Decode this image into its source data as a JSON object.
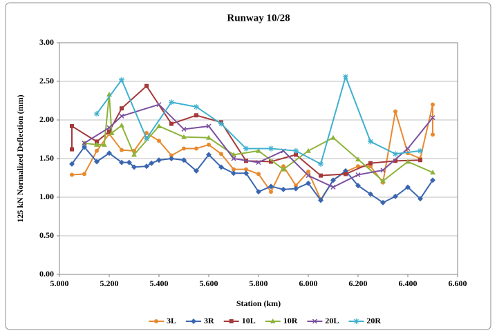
{
  "chart_data": {
    "type": "line",
    "title": "Runway 10/28",
    "x_label": "Station (km)",
    "y_label": "125 kN Normalized Deflection (mm)",
    "xlim": [
      5.0,
      6.6
    ],
    "xticks": [
      {
        "value": 5.0,
        "label": "5.000"
      },
      {
        "value": 5.2,
        "label": "5.200"
      },
      {
        "value": 5.4,
        "label": "5.400"
      },
      {
        "value": 5.6,
        "label": "5.600"
      },
      {
        "value": 5.8,
        "label": "5.800"
      },
      {
        "value": 6.0,
        "label": "6.000"
      },
      {
        "value": 6.2,
        "label": "6.200"
      },
      {
        "value": 6.4,
        "label": "6.400"
      },
      {
        "value": 6.6,
        "label": "6.600"
      }
    ],
    "ylim": [
      0,
      3
    ],
    "yticks": [
      {
        "value": 0,
        "label": "0.00"
      },
      {
        "value": 0.5,
        "label": "0.50"
      },
      {
        "value": 1,
        "label": "1.00"
      },
      {
        "value": 1.5,
        "label": "1.50"
      },
      {
        "value": 2,
        "label": "2.00"
      },
      {
        "value": 2.5,
        "label": "2.50"
      },
      {
        "value": 3,
        "label": "3.00"
      }
    ],
    "grid": true,
    "legend": "bottom",
    "series": [
      {
        "name": "3L",
        "color": "#e8892f",
        "marker": "circle",
        "x": [
          5.05,
          5.1,
          5.15,
          5.2,
          5.25,
          5.3,
          5.35,
          5.4,
          5.45,
          5.5,
          5.55,
          5.6,
          5.65,
          5.7,
          5.75,
          5.8,
          5.85,
          5.9,
          5.95,
          6.0,
          6.05,
          6.1,
          6.15,
          6.2,
          6.25,
          6.3,
          6.35,
          6.4,
          6.45,
          6.5,
          6.5
        ],
        "values": [
          1.29,
          1.3,
          1.6,
          1.82,
          1.61,
          1.6,
          1.83,
          1.73,
          1.54,
          1.63,
          1.63,
          1.68,
          1.56,
          1.36,
          1.36,
          1.3,
          1.07,
          1.4,
          1.15,
          1.33,
          0.97,
          1.22,
          1.33,
          1.4,
          1.4,
          1.19,
          2.11,
          1.57,
          1.5,
          2.2,
          1.81
        ]
      },
      {
        "name": "3R",
        "color": "#3a66b0",
        "marker": "diamond",
        "x": [
          5.05,
          5.1,
          5.15,
          5.2,
          5.25,
          5.28,
          5.3,
          5.35,
          5.37,
          5.4,
          5.45,
          5.5,
          5.55,
          5.6,
          5.65,
          5.7,
          5.75,
          5.8,
          5.85,
          5.9,
          5.95,
          6.0,
          6.05,
          6.1,
          6.15,
          6.2,
          6.25,
          6.3,
          6.35,
          6.4,
          6.45,
          6.5
        ],
        "values": [
          1.43,
          1.65,
          1.46,
          1.57,
          1.45,
          1.45,
          1.39,
          1.4,
          1.44,
          1.48,
          1.5,
          1.48,
          1.34,
          1.55,
          1.39,
          1.31,
          1.31,
          1.07,
          1.14,
          1.1,
          1.11,
          1.18,
          0.96,
          1.22,
          1.34,
          1.15,
          1.04,
          0.93,
          1.01,
          1.13,
          0.98,
          1.22
        ]
      },
      {
        "name": "10L",
        "color": "#a5393a",
        "marker": "square",
        "x": [
          5.05,
          5.05,
          5.15,
          5.2,
          5.25,
          5.35,
          5.45,
          5.55,
          5.65,
          5.75,
          5.85,
          5.95,
          6.05,
          6.15,
          6.25,
          6.35,
          6.45
        ],
        "values": [
          1.62,
          1.92,
          1.72,
          1.85,
          2.15,
          2.44,
          1.95,
          2.06,
          1.97,
          1.47,
          1.46,
          1.55,
          1.28,
          1.3,
          1.44,
          1.47,
          1.48
        ]
      },
      {
        "name": "10R",
        "color": "#8db33b",
        "marker": "triangle",
        "x": [
          5.1,
          5.15,
          5.18,
          5.2,
          5.21,
          5.25,
          5.3,
          5.4,
          5.5,
          5.6,
          5.7,
          5.8,
          5.9,
          6.0,
          6.1,
          6.2,
          6.3,
          6.4,
          6.5
        ],
        "values": [
          1.7,
          1.68,
          1.68,
          2.33,
          1.83,
          1.93,
          1.55,
          1.92,
          1.78,
          1.77,
          1.55,
          1.6,
          1.36,
          1.6,
          1.77,
          1.49,
          1.21,
          1.46,
          1.32
        ]
      },
      {
        "name": "20L",
        "color": "#7a4f9e",
        "marker": "x",
        "x": [
          5.1,
          5.2,
          5.25,
          5.4,
          5.5,
          5.6,
          5.7,
          5.8,
          5.9,
          6.0,
          6.1,
          6.2,
          6.3,
          6.4,
          6.5
        ],
        "values": [
          1.7,
          1.9,
          2.05,
          2.2,
          1.88,
          1.92,
          1.5,
          1.45,
          1.6,
          1.28,
          1.13,
          1.29,
          1.35,
          1.63,
          2.03
        ]
      },
      {
        "name": "20R",
        "color": "#3eb0cf",
        "marker": "star",
        "x": [
          5.15,
          5.25,
          5.35,
          5.45,
          5.55,
          5.65,
          5.75,
          5.85,
          5.95,
          6.05,
          6.15,
          6.25,
          6.35,
          6.45
        ],
        "values": [
          2.08,
          2.52,
          1.76,
          2.23,
          2.17,
          1.95,
          1.63,
          1.63,
          1.6,
          1.43,
          2.56,
          1.72,
          1.56,
          1.6
        ]
      }
    ]
  }
}
